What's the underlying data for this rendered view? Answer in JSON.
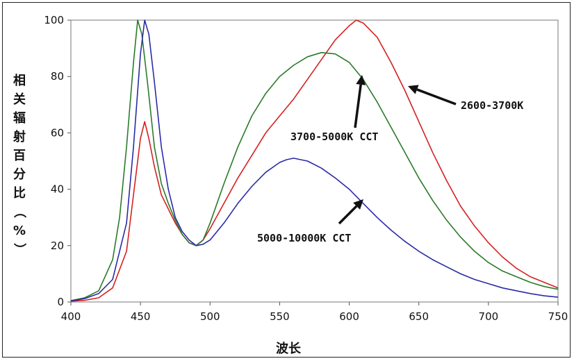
{
  "chart_data": {
    "type": "line",
    "xlabel": "波长",
    "ylabel": "相关辐射百分比（%）",
    "xlim": [
      400,
      750
    ],
    "ylim": [
      0,
      100
    ],
    "x_ticks": [
      "400",
      "450",
      "500",
      "550",
      "600",
      "650",
      "700",
      "750"
    ],
    "y_ticks": [
      "0",
      "20",
      "40",
      "60",
      "80",
      "100"
    ],
    "grid": "horizontal",
    "series": [
      {
        "name": "2600-3700K",
        "color": "#d42020",
        "points": [
          [
            400,
            0.3
          ],
          [
            410,
            0.6
          ],
          [
            420,
            1.5
          ],
          [
            430,
            5
          ],
          [
            440,
            18
          ],
          [
            445,
            38
          ],
          [
            450,
            58
          ],
          [
            453,
            64
          ],
          [
            456,
            58
          ],
          [
            460,
            48
          ],
          [
            465,
            38
          ],
          [
            470,
            33
          ],
          [
            475,
            28
          ],
          [
            480,
            24
          ],
          [
            485,
            21
          ],
          [
            490,
            20
          ],
          [
            495,
            22
          ],
          [
            500,
            26
          ],
          [
            510,
            35
          ],
          [
            520,
            44
          ],
          [
            530,
            52
          ],
          [
            540,
            60
          ],
          [
            550,
            66
          ],
          [
            560,
            72
          ],
          [
            570,
            79
          ],
          [
            580,
            86
          ],
          [
            590,
            93
          ],
          [
            600,
            98
          ],
          [
            605,
            100
          ],
          [
            610,
            99
          ],
          [
            620,
            94
          ],
          [
            630,
            85
          ],
          [
            640,
            75
          ],
          [
            650,
            64
          ],
          [
            660,
            53
          ],
          [
            670,
            43
          ],
          [
            680,
            34
          ],
          [
            690,
            27
          ],
          [
            700,
            21
          ],
          [
            710,
            16
          ],
          [
            720,
            12
          ],
          [
            730,
            9
          ],
          [
            740,
            7
          ],
          [
            750,
            5
          ]
        ]
      },
      {
        "name": "3700-5000K CCT",
        "color": "#2a7a2a",
        "points": [
          [
            400,
            0.5
          ],
          [
            410,
            1.5
          ],
          [
            420,
            4
          ],
          [
            430,
            15
          ],
          [
            435,
            30
          ],
          [
            440,
            55
          ],
          [
            445,
            85
          ],
          [
            448,
            100
          ],
          [
            451,
            95
          ],
          [
            455,
            78
          ],
          [
            460,
            55
          ],
          [
            465,
            42
          ],
          [
            470,
            35
          ],
          [
            475,
            29
          ],
          [
            480,
            24
          ],
          [
            485,
            21
          ],
          [
            490,
            20
          ],
          [
            495,
            22
          ],
          [
            500,
            28
          ],
          [
            510,
            42
          ],
          [
            520,
            55
          ],
          [
            530,
            66
          ],
          [
            540,
            74
          ],
          [
            550,
            80
          ],
          [
            560,
            84
          ],
          [
            570,
            87
          ],
          [
            580,
            88.5
          ],
          [
            590,
            88
          ],
          [
            600,
            85
          ],
          [
            610,
            79
          ],
          [
            620,
            71
          ],
          [
            630,
            62
          ],
          [
            640,
            53
          ],
          [
            650,
            44
          ],
          [
            660,
            36
          ],
          [
            670,
            29
          ],
          [
            680,
            23
          ],
          [
            690,
            18
          ],
          [
            700,
            14
          ],
          [
            710,
            11
          ],
          [
            720,
            9
          ],
          [
            730,
            7
          ],
          [
            740,
            5.5
          ],
          [
            750,
            4.5
          ]
        ]
      },
      {
        "name": "5000-10000K CCT",
        "color": "#2a2aa8",
        "points": [
          [
            400,
            0.4
          ],
          [
            410,
            1.2
          ],
          [
            420,
            3
          ],
          [
            430,
            8
          ],
          [
            440,
            28
          ],
          [
            445,
            55
          ],
          [
            450,
            88
          ],
          [
            453,
            100
          ],
          [
            456,
            95
          ],
          [
            460,
            78
          ],
          [
            465,
            55
          ],
          [
            470,
            40
          ],
          [
            475,
            30
          ],
          [
            480,
            25
          ],
          [
            485,
            22
          ],
          [
            490,
            20
          ],
          [
            495,
            20.5
          ],
          [
            500,
            22
          ],
          [
            510,
            28
          ],
          [
            520,
            35
          ],
          [
            530,
            41
          ],
          [
            540,
            46
          ],
          [
            550,
            49.5
          ],
          [
            555,
            50.5
          ],
          [
            560,
            51
          ],
          [
            570,
            50
          ],
          [
            580,
            47.5
          ],
          [
            590,
            44
          ],
          [
            600,
            40
          ],
          [
            610,
            35
          ],
          [
            620,
            30
          ],
          [
            630,
            25.5
          ],
          [
            640,
            21.5
          ],
          [
            650,
            18
          ],
          [
            660,
            15
          ],
          [
            670,
            12.5
          ],
          [
            680,
            10
          ],
          [
            690,
            8
          ],
          [
            700,
            6.5
          ],
          [
            710,
            5
          ],
          [
            720,
            4
          ],
          [
            730,
            3
          ],
          [
            740,
            2.2
          ],
          [
            750,
            1.7
          ]
        ]
      }
    ],
    "annotations": [
      {
        "text": "2600-3700K"
      },
      {
        "text": "3700-5000K CCT"
      },
      {
        "text": "5000-10000K CCT"
      }
    ]
  }
}
